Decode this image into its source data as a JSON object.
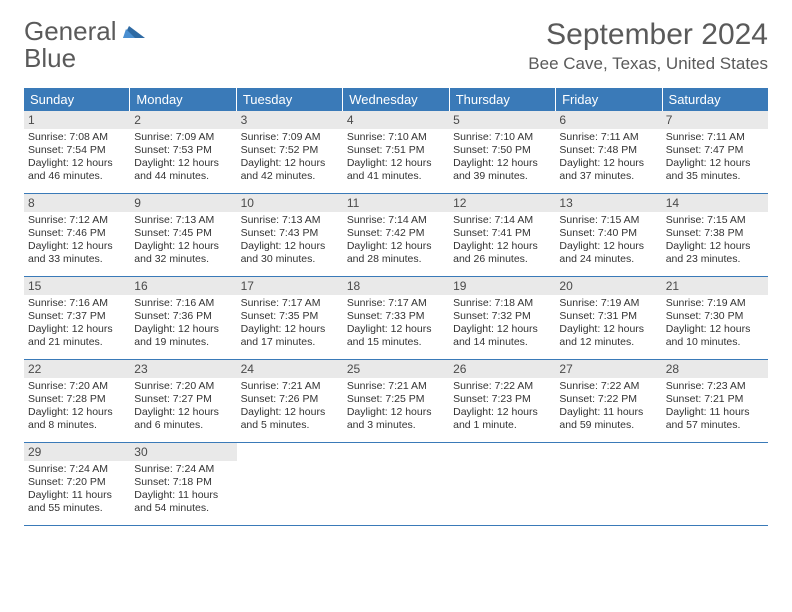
{
  "logo": {
    "text_plain": "General",
    "text_blue": "Blue"
  },
  "title": "September 2024",
  "location": "Bee Cave, Texas, United States",
  "colors": {
    "header_bg": "#3a7ab8",
    "header_fg": "#ffffff",
    "daynum_bg": "#e9e9e9",
    "week_border": "#3a7ab8",
    "text": "#333333",
    "title_color": "#5a5a5a",
    "background": "#ffffff"
  },
  "fonts": {
    "title_size": 30,
    "location_size": 17,
    "dow_size": 13,
    "daynum_size": 12,
    "body_size": 10.5
  },
  "days_of_week": [
    "Sunday",
    "Monday",
    "Tuesday",
    "Wednesday",
    "Thursday",
    "Friday",
    "Saturday"
  ],
  "weeks": [
    [
      {
        "num": "1",
        "sunrise": "Sunrise: 7:08 AM",
        "sunset": "Sunset: 7:54 PM",
        "daylight": "Daylight: 12 hours and 46 minutes."
      },
      {
        "num": "2",
        "sunrise": "Sunrise: 7:09 AM",
        "sunset": "Sunset: 7:53 PM",
        "daylight": "Daylight: 12 hours and 44 minutes."
      },
      {
        "num": "3",
        "sunrise": "Sunrise: 7:09 AM",
        "sunset": "Sunset: 7:52 PM",
        "daylight": "Daylight: 12 hours and 42 minutes."
      },
      {
        "num": "4",
        "sunrise": "Sunrise: 7:10 AM",
        "sunset": "Sunset: 7:51 PM",
        "daylight": "Daylight: 12 hours and 41 minutes."
      },
      {
        "num": "5",
        "sunrise": "Sunrise: 7:10 AM",
        "sunset": "Sunset: 7:50 PM",
        "daylight": "Daylight: 12 hours and 39 minutes."
      },
      {
        "num": "6",
        "sunrise": "Sunrise: 7:11 AM",
        "sunset": "Sunset: 7:48 PM",
        "daylight": "Daylight: 12 hours and 37 minutes."
      },
      {
        "num": "7",
        "sunrise": "Sunrise: 7:11 AM",
        "sunset": "Sunset: 7:47 PM",
        "daylight": "Daylight: 12 hours and 35 minutes."
      }
    ],
    [
      {
        "num": "8",
        "sunrise": "Sunrise: 7:12 AM",
        "sunset": "Sunset: 7:46 PM",
        "daylight": "Daylight: 12 hours and 33 minutes."
      },
      {
        "num": "9",
        "sunrise": "Sunrise: 7:13 AM",
        "sunset": "Sunset: 7:45 PM",
        "daylight": "Daylight: 12 hours and 32 minutes."
      },
      {
        "num": "10",
        "sunrise": "Sunrise: 7:13 AM",
        "sunset": "Sunset: 7:43 PM",
        "daylight": "Daylight: 12 hours and 30 minutes."
      },
      {
        "num": "11",
        "sunrise": "Sunrise: 7:14 AM",
        "sunset": "Sunset: 7:42 PM",
        "daylight": "Daylight: 12 hours and 28 minutes."
      },
      {
        "num": "12",
        "sunrise": "Sunrise: 7:14 AM",
        "sunset": "Sunset: 7:41 PM",
        "daylight": "Daylight: 12 hours and 26 minutes."
      },
      {
        "num": "13",
        "sunrise": "Sunrise: 7:15 AM",
        "sunset": "Sunset: 7:40 PM",
        "daylight": "Daylight: 12 hours and 24 minutes."
      },
      {
        "num": "14",
        "sunrise": "Sunrise: 7:15 AM",
        "sunset": "Sunset: 7:38 PM",
        "daylight": "Daylight: 12 hours and 23 minutes."
      }
    ],
    [
      {
        "num": "15",
        "sunrise": "Sunrise: 7:16 AM",
        "sunset": "Sunset: 7:37 PM",
        "daylight": "Daylight: 12 hours and 21 minutes."
      },
      {
        "num": "16",
        "sunrise": "Sunrise: 7:16 AM",
        "sunset": "Sunset: 7:36 PM",
        "daylight": "Daylight: 12 hours and 19 minutes."
      },
      {
        "num": "17",
        "sunrise": "Sunrise: 7:17 AM",
        "sunset": "Sunset: 7:35 PM",
        "daylight": "Daylight: 12 hours and 17 minutes."
      },
      {
        "num": "18",
        "sunrise": "Sunrise: 7:17 AM",
        "sunset": "Sunset: 7:33 PM",
        "daylight": "Daylight: 12 hours and 15 minutes."
      },
      {
        "num": "19",
        "sunrise": "Sunrise: 7:18 AM",
        "sunset": "Sunset: 7:32 PM",
        "daylight": "Daylight: 12 hours and 14 minutes."
      },
      {
        "num": "20",
        "sunrise": "Sunrise: 7:19 AM",
        "sunset": "Sunset: 7:31 PM",
        "daylight": "Daylight: 12 hours and 12 minutes."
      },
      {
        "num": "21",
        "sunrise": "Sunrise: 7:19 AM",
        "sunset": "Sunset: 7:30 PM",
        "daylight": "Daylight: 12 hours and 10 minutes."
      }
    ],
    [
      {
        "num": "22",
        "sunrise": "Sunrise: 7:20 AM",
        "sunset": "Sunset: 7:28 PM",
        "daylight": "Daylight: 12 hours and 8 minutes."
      },
      {
        "num": "23",
        "sunrise": "Sunrise: 7:20 AM",
        "sunset": "Sunset: 7:27 PM",
        "daylight": "Daylight: 12 hours and 6 minutes."
      },
      {
        "num": "24",
        "sunrise": "Sunrise: 7:21 AM",
        "sunset": "Sunset: 7:26 PM",
        "daylight": "Daylight: 12 hours and 5 minutes."
      },
      {
        "num": "25",
        "sunrise": "Sunrise: 7:21 AM",
        "sunset": "Sunset: 7:25 PM",
        "daylight": "Daylight: 12 hours and 3 minutes."
      },
      {
        "num": "26",
        "sunrise": "Sunrise: 7:22 AM",
        "sunset": "Sunset: 7:23 PM",
        "daylight": "Daylight: 12 hours and 1 minute."
      },
      {
        "num": "27",
        "sunrise": "Sunrise: 7:22 AM",
        "sunset": "Sunset: 7:22 PM",
        "daylight": "Daylight: 11 hours and 59 minutes."
      },
      {
        "num": "28",
        "sunrise": "Sunrise: 7:23 AM",
        "sunset": "Sunset: 7:21 PM",
        "daylight": "Daylight: 11 hours and 57 minutes."
      }
    ],
    [
      {
        "num": "29",
        "sunrise": "Sunrise: 7:24 AM",
        "sunset": "Sunset: 7:20 PM",
        "daylight": "Daylight: 11 hours and 55 minutes."
      },
      {
        "num": "30",
        "sunrise": "Sunrise: 7:24 AM",
        "sunset": "Sunset: 7:18 PM",
        "daylight": "Daylight: 11 hours and 54 minutes."
      },
      null,
      null,
      null,
      null,
      null
    ]
  ]
}
